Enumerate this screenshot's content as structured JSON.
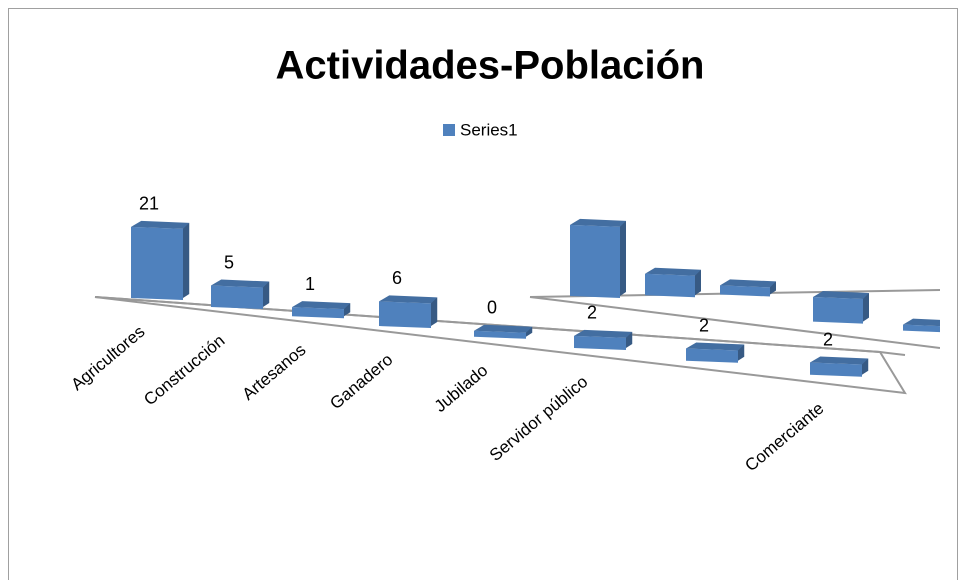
{
  "chart_data": {
    "type": "bar3d",
    "title": "Actividades-Población",
    "categories": [
      "Agricultores",
      "Construcción",
      "Artesanos",
      "Ganadero",
      "Jubilado",
      "Servidor público",
      null,
      "Comerciante"
    ],
    "series": [
      {
        "name": "Series1",
        "color": "#4f81bd",
        "values": [
          21,
          5,
          1,
          6,
          0,
          2,
          2,
          2
        ]
      }
    ],
    "legend": "top"
  }
}
